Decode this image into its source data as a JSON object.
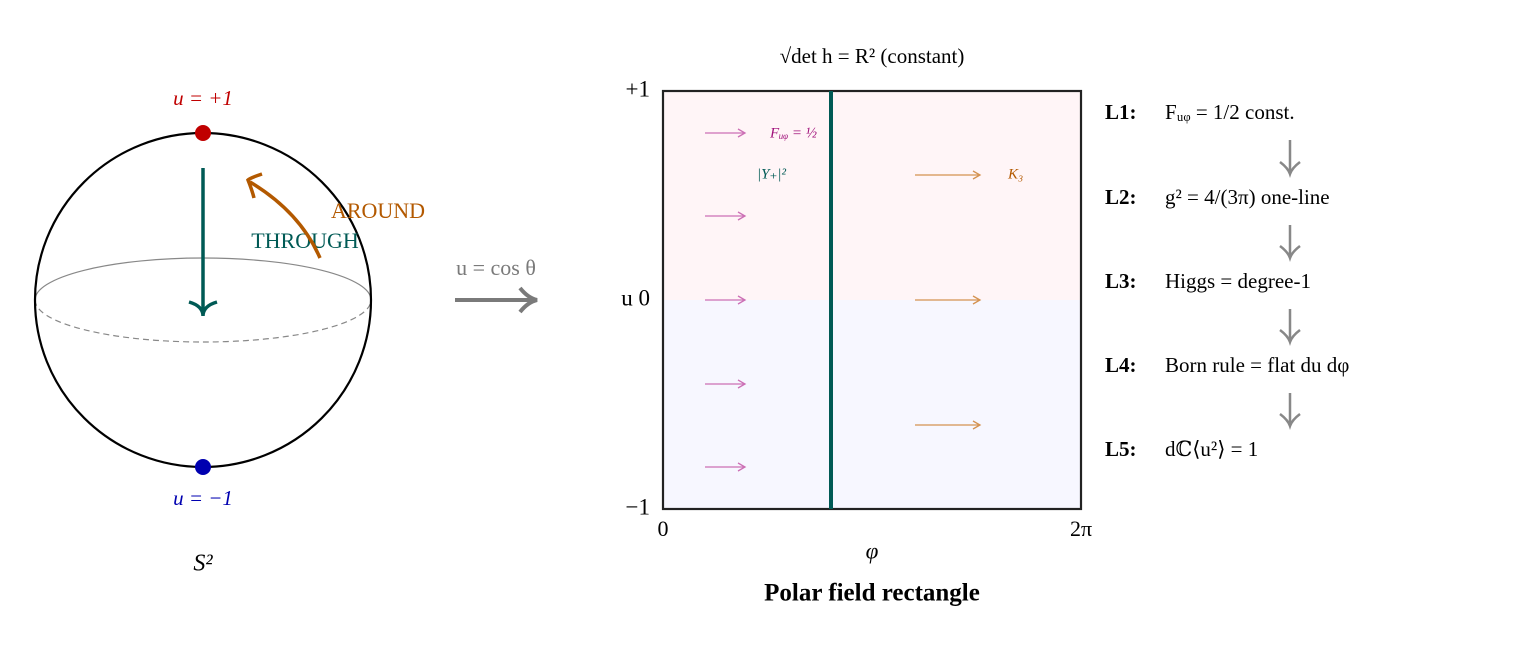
{
  "sphere": {
    "top_label": "u = +1",
    "bottom_label": "u = −1",
    "through": "THROUGH",
    "around": "AROUND",
    "caption": "S²"
  },
  "map_label": "u = cos θ",
  "rectangle": {
    "title": "√det h = R² (constant)",
    "y_top": "+1",
    "y_mid": "u 0",
    "y_bottom": "−1",
    "x_left": "0",
    "x_right": "2π",
    "x_axis": "φ",
    "caption": "Polar field rectangle",
    "field_label": "Fᵤᵩ = ½",
    "y_label": "|Y₊|²",
    "k_label": "K₃"
  },
  "steps": [
    {
      "label": "L1:",
      "text": "Fᵤᵩ = 1/2 const."
    },
    {
      "label": "L2:",
      "text": "g² = 4/(3π) one-line"
    },
    {
      "label": "L3:",
      "text": "Higgs = degree-1"
    },
    {
      "label": "L4:",
      "text": "Born rule = flat du dφ"
    },
    {
      "label": "L5:",
      "text": "dℂ⟨u²⟩ = 1"
    }
  ]
}
